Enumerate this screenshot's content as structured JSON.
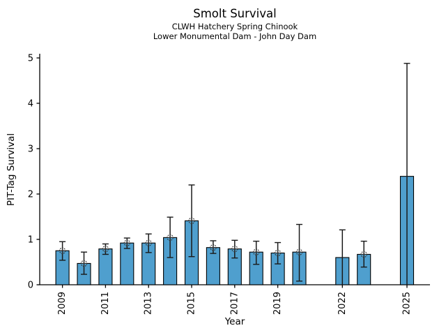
{
  "chart_data": {
    "type": "bar",
    "title": "Smolt Survival",
    "subtitle1": "CLWH Hatchery Spring Chinook",
    "subtitle2": "Lower Monumental Dam - John Day Dam",
    "xlabel": "Year",
    "ylabel": "PIT-Tag Survival",
    "ylim": [
      0,
      5
    ],
    "yticks": [
      0,
      1,
      2,
      3,
      4,
      5
    ],
    "xtick_years": [
      2009,
      2011,
      2013,
      2015,
      2017,
      2019,
      2022,
      2025
    ],
    "xrange_years": [
      2008,
      2026
    ],
    "grid": false,
    "legend": "none",
    "bar_color": "#4f9fce",
    "bar_edge_color": "#000000",
    "errorbar_color": "#1a1a1a",
    "marker_style": "dashed-circle-plus",
    "bars": [
      {
        "year": 2009,
        "value": 0.75,
        "lo": 0.54,
        "hi": 0.95,
        "marker": true
      },
      {
        "year": 2010,
        "value": 0.47,
        "lo": 0.23,
        "hi": 0.72,
        "marker": true
      },
      {
        "year": 2011,
        "value": 0.79,
        "lo": 0.67,
        "hi": 0.9,
        "marker": true
      },
      {
        "year": 2012,
        "value": 0.92,
        "lo": 0.8,
        "hi": 1.03,
        "marker": true
      },
      {
        "year": 2013,
        "value": 0.92,
        "lo": 0.71,
        "hi": 1.12,
        "marker": true
      },
      {
        "year": 2014,
        "value": 1.04,
        "lo": 0.6,
        "hi": 1.49,
        "marker": true
      },
      {
        "year": 2015,
        "value": 1.41,
        "lo": 0.62,
        "hi": 2.2,
        "marker": true
      },
      {
        "year": 2016,
        "value": 0.82,
        "lo": 0.69,
        "hi": 0.97,
        "marker": true
      },
      {
        "year": 2017,
        "value": 0.79,
        "lo": 0.59,
        "hi": 0.98,
        "marker": true
      },
      {
        "year": 2018,
        "value": 0.72,
        "lo": 0.45,
        "hi": 0.96,
        "marker": true
      },
      {
        "year": 2019,
        "value": 0.7,
        "lo": 0.46,
        "hi": 0.93,
        "marker": true
      },
      {
        "year": 2020,
        "value": 0.72,
        "lo": 0.08,
        "hi": 1.33,
        "marker": true
      },
      {
        "year": 2022,
        "value": 0.6,
        "lo": 0.0,
        "hi": 1.21,
        "marker": false
      },
      {
        "year": 2023,
        "value": 0.67,
        "lo": 0.39,
        "hi": 0.96,
        "marker": true
      },
      {
        "year": 2025,
        "value": 2.39,
        "lo": 0.0,
        "hi": 4.88,
        "marker": false
      }
    ]
  }
}
